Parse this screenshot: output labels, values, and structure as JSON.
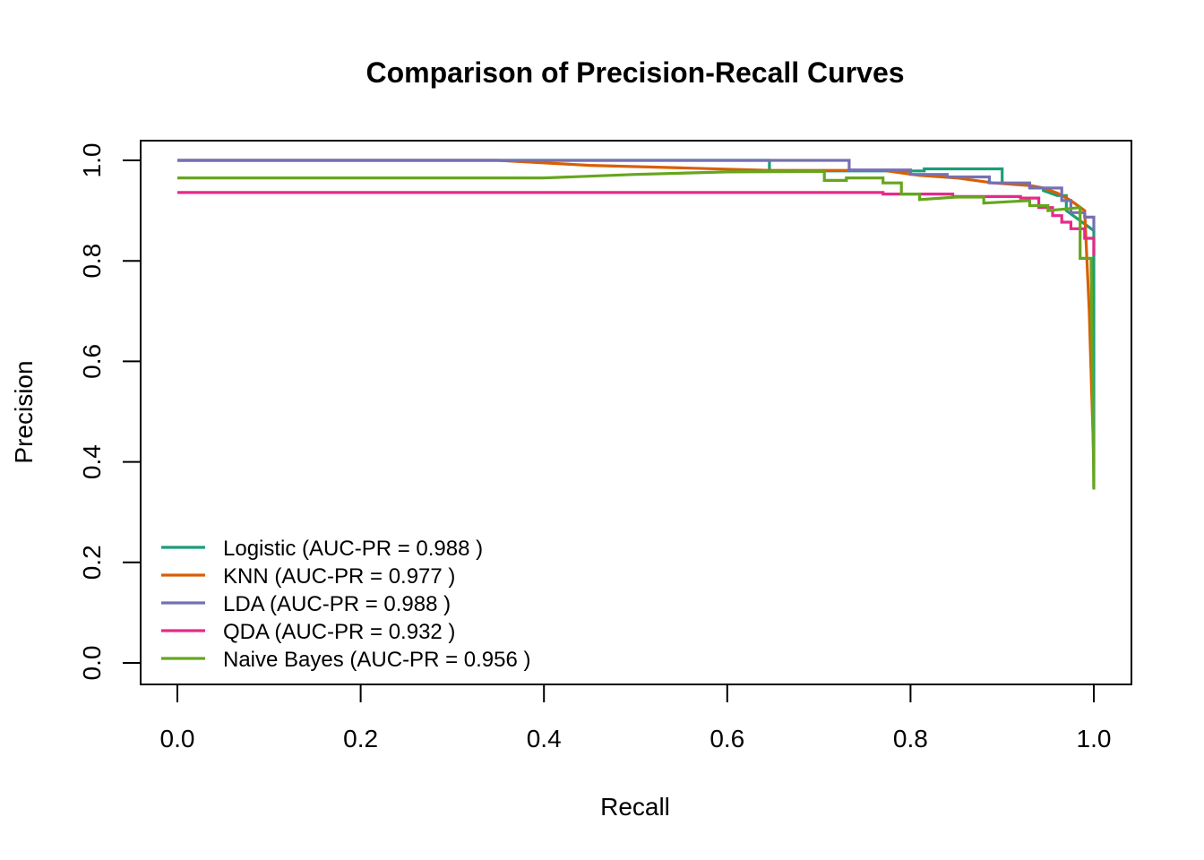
{
  "chart_data": {
    "type": "line",
    "title": "Comparison of Precision-Recall Curves",
    "xlabel": "Recall",
    "ylabel": "Precision",
    "xlim": [
      0.0,
      1.0
    ],
    "ylim": [
      0.0,
      1.0
    ],
    "x_ticks": [
      "0.0",
      "0.2",
      "0.4",
      "0.6",
      "0.8",
      "1.0"
    ],
    "y_ticks": [
      "0.0",
      "0.2",
      "0.4",
      "0.6",
      "0.8",
      "1.0"
    ],
    "grid": false,
    "legend_position": "bottom-left",
    "series": [
      {
        "name": "Logistic (AUC-PR = 0.988 )",
        "color": "#1B9E77",
        "points": [
          [
            0.0,
            1.0
          ],
          [
            0.646,
            1.0
          ],
          [
            0.646,
            0.979
          ],
          [
            0.815,
            0.979
          ],
          [
            0.815,
            0.983
          ],
          [
            0.9,
            0.983
          ],
          [
            0.9,
            0.954
          ],
          [
            0.93,
            0.954
          ],
          [
            0.93,
            0.95
          ],
          [
            0.945,
            0.945
          ],
          [
            0.945,
            0.94
          ],
          [
            0.96,
            0.93
          ],
          [
            0.97,
            0.93
          ],
          [
            0.97,
            0.9
          ],
          [
            1.0,
            0.86
          ],
          [
            1.0,
            0.35
          ]
        ]
      },
      {
        "name": "KNN (AUC-PR = 0.977 )",
        "color": "#D95F02",
        "points": [
          [
            0.0,
            1.0
          ],
          [
            0.35,
            1.0
          ],
          [
            0.45,
            0.99
          ],
          [
            0.55,
            0.985
          ],
          [
            0.646,
            0.98
          ],
          [
            0.73,
            0.98
          ],
          [
            0.77,
            0.98
          ],
          [
            0.81,
            0.97
          ],
          [
            0.85,
            0.965
          ],
          [
            0.89,
            0.955
          ],
          [
            0.93,
            0.95
          ],
          [
            0.945,
            0.945
          ],
          [
            0.96,
            0.935
          ],
          [
            0.975,
            0.92
          ],
          [
            0.99,
            0.9
          ],
          [
            0.995,
            0.7
          ],
          [
            1.0,
            0.4
          ]
        ]
      },
      {
        "name": "LDA (AUC-PR = 0.988 )",
        "color": "#7570B3",
        "points": [
          [
            0.0,
            1.0
          ],
          [
            0.733,
            1.0
          ],
          [
            0.733,
            0.981
          ],
          [
            0.8,
            0.981
          ],
          [
            0.8,
            0.972
          ],
          [
            0.84,
            0.972
          ],
          [
            0.84,
            0.967
          ],
          [
            0.886,
            0.967
          ],
          [
            0.886,
            0.955
          ],
          [
            0.93,
            0.955
          ],
          [
            0.93,
            0.945
          ],
          [
            0.965,
            0.945
          ],
          [
            0.965,
            0.92
          ],
          [
            0.975,
            0.92
          ],
          [
            0.975,
            0.896
          ],
          [
            0.99,
            0.896
          ],
          [
            0.99,
            0.887
          ],
          [
            1.0,
            0.887
          ],
          [
            1.0,
            0.86
          ]
        ]
      },
      {
        "name": "QDA (AUC-PR = 0.932 )",
        "color": "#E7298A",
        "points": [
          [
            0.0,
            0.936
          ],
          [
            0.77,
            0.936
          ],
          [
            0.77,
            0.933
          ],
          [
            0.846,
            0.933
          ],
          [
            0.846,
            0.928
          ],
          [
            0.92,
            0.928
          ],
          [
            0.92,
            0.925
          ],
          [
            0.94,
            0.925
          ],
          [
            0.94,
            0.906
          ],
          [
            0.955,
            0.906
          ],
          [
            0.955,
            0.89
          ],
          [
            0.965,
            0.89
          ],
          [
            0.965,
            0.877
          ],
          [
            0.975,
            0.877
          ],
          [
            0.975,
            0.864
          ],
          [
            0.99,
            0.864
          ],
          [
            0.99,
            0.845
          ],
          [
            1.0,
            0.845
          ],
          [
            1.0,
            0.81
          ]
        ]
      },
      {
        "name": "Naive Bayes (AUC-PR = 0.956 )",
        "color": "#66A61E",
        "points": [
          [
            0.0,
            0.965
          ],
          [
            0.4,
            0.965
          ],
          [
            0.5,
            0.972
          ],
          [
            0.6,
            0.977
          ],
          [
            0.706,
            0.978
          ],
          [
            0.706,
            0.96
          ],
          [
            0.73,
            0.96
          ],
          [
            0.73,
            0.965
          ],
          [
            0.77,
            0.965
          ],
          [
            0.77,
            0.955
          ],
          [
            0.79,
            0.955
          ],
          [
            0.79,
            0.933
          ],
          [
            0.81,
            0.933
          ],
          [
            0.81,
            0.922
          ],
          [
            0.85,
            0.927
          ],
          [
            0.88,
            0.927
          ],
          [
            0.88,
            0.915
          ],
          [
            0.93,
            0.92
          ],
          [
            0.93,
            0.91
          ],
          [
            0.95,
            0.91
          ],
          [
            0.95,
            0.9
          ],
          [
            0.985,
            0.906
          ],
          [
            0.985,
            0.805
          ],
          [
            0.997,
            0.805
          ],
          [
            1.0,
            0.345
          ]
        ]
      }
    ]
  }
}
